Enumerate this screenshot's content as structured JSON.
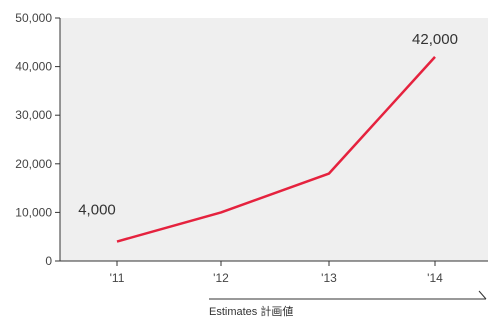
{
  "chart_data": {
    "type": "line",
    "categories": [
      "'11",
      "'12",
      "'13",
      "'14"
    ],
    "series": [
      {
        "values": [
          4000,
          10000,
          18000,
          42000
        ]
      }
    ],
    "ylim": [
      0,
      50000
    ],
    "yticks": [
      "0",
      "10,000",
      "20,000",
      "30,000",
      "40,000",
      "50,000"
    ],
    "data_labels": [
      {
        "index": 0,
        "text": "4,000"
      },
      {
        "index": 3,
        "text": "42,000"
      }
    ],
    "annotation": "Estimates 計画値",
    "grid": false,
    "colors": {
      "line": "#e5223e",
      "plot_bg": "#efefef",
      "axis": "#333333"
    }
  }
}
